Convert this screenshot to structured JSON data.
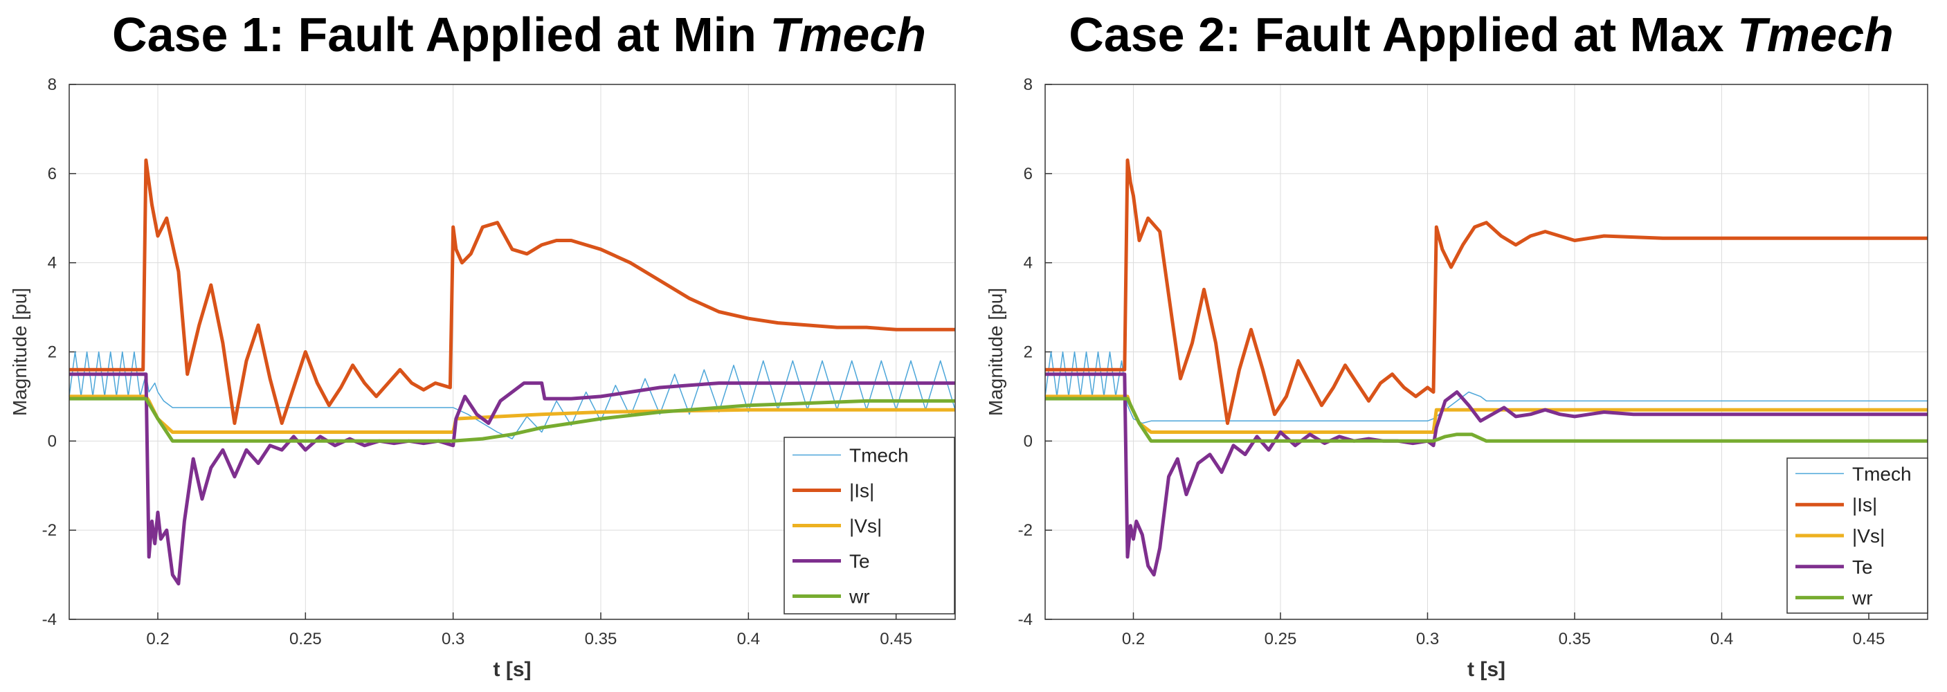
{
  "chart_data": [
    {
      "type": "line",
      "title_main": "Case 1: Fault Applied at Min ",
      "title_em": "Tmech",
      "xlabel": "t [s]",
      "ylabel": "Magnitude [pu]",
      "xlim": [
        0.17,
        0.47
      ],
      "ylim": [
        -4,
        8
      ],
      "xticks": [
        0.2,
        0.25,
        0.3,
        0.35,
        0.4,
        0.45
      ],
      "xticklabels": [
        "0.2",
        "0.25",
        "0.3",
        "0.35",
        "0.4",
        "0.45"
      ],
      "yticks": [
        -4,
        -2,
        0,
        2,
        4,
        6,
        8
      ],
      "yticklabels": [
        "-4",
        "-2",
        "0",
        "2",
        "4",
        "6",
        "8"
      ],
      "grid": true,
      "legend_position": "bottom-right",
      "series": [
        {
          "name": "Tmech",
          "color": "#4DA6D9",
          "width": 1.5,
          "x": [
            0.17,
            0.172,
            0.174,
            0.176,
            0.178,
            0.18,
            0.182,
            0.184,
            0.186,
            0.188,
            0.19,
            0.192,
            0.194,
            0.196,
            0.197,
            0.199,
            0.2,
            0.202,
            0.205,
            0.3,
            0.305,
            0.31,
            0.315,
            0.32,
            0.325,
            0.33,
            0.335,
            0.34,
            0.345,
            0.35,
            0.355,
            0.36,
            0.365,
            0.37,
            0.375,
            0.38,
            0.385,
            0.39,
            0.395,
            0.4,
            0.405,
            0.41,
            0.415,
            0.42,
            0.425,
            0.43,
            0.435,
            0.44,
            0.445,
            0.45,
            0.455,
            0.46,
            0.465,
            0.47
          ],
          "y": [
            1.0,
            2.0,
            1.0,
            2.0,
            1.0,
            2.0,
            1.0,
            2.0,
            1.0,
            2.0,
            1.0,
            2.0,
            1.0,
            1.5,
            1.1,
            1.3,
            1.1,
            0.9,
            0.75,
            0.75,
            0.6,
            0.4,
            0.2,
            0.05,
            0.55,
            0.2,
            0.9,
            0.35,
            1.1,
            0.45,
            1.25,
            0.55,
            1.4,
            0.6,
            1.5,
            0.6,
            1.6,
            0.65,
            1.7,
            0.65,
            1.8,
            0.7,
            1.8,
            0.7,
            1.8,
            0.7,
            1.8,
            0.7,
            1.8,
            0.7,
            1.8,
            0.7,
            1.8,
            0.7
          ]
        },
        {
          "name": "|Is|",
          "color": "#D95319",
          "width": 5,
          "x": [
            0.17,
            0.195,
            0.196,
            0.197,
            0.198,
            0.2,
            0.203,
            0.207,
            0.21,
            0.214,
            0.218,
            0.222,
            0.226,
            0.23,
            0.234,
            0.238,
            0.242,
            0.246,
            0.25,
            0.254,
            0.258,
            0.262,
            0.266,
            0.27,
            0.274,
            0.278,
            0.282,
            0.286,
            0.29,
            0.294,
            0.299,
            0.3,
            0.301,
            0.303,
            0.306,
            0.31,
            0.315,
            0.32,
            0.325,
            0.33,
            0.335,
            0.34,
            0.35,
            0.36,
            0.37,
            0.38,
            0.39,
            0.4,
            0.41,
            0.42,
            0.43,
            0.44,
            0.45,
            0.46,
            0.47
          ],
          "y": [
            1.6,
            1.6,
            6.3,
            5.8,
            5.3,
            4.6,
            5.0,
            3.8,
            1.5,
            2.6,
            3.5,
            2.2,
            0.4,
            1.8,
            2.6,
            1.4,
            0.4,
            1.2,
            2.0,
            1.3,
            0.8,
            1.2,
            1.7,
            1.3,
            1.0,
            1.3,
            1.6,
            1.3,
            1.15,
            1.3,
            1.2,
            4.8,
            4.3,
            4.0,
            4.2,
            4.8,
            4.9,
            4.3,
            4.2,
            4.4,
            4.5,
            4.5,
            4.3,
            4.0,
            3.6,
            3.2,
            2.9,
            2.75,
            2.65,
            2.6,
            2.55,
            2.55,
            2.5,
            2.5,
            2.5
          ]
        },
        {
          "name": "|Vs|",
          "color": "#EDB120",
          "width": 5,
          "x": [
            0.17,
            0.196,
            0.197,
            0.2,
            0.205,
            0.3,
            0.301,
            0.33,
            0.35,
            0.4,
            0.47
          ],
          "y": [
            1.0,
            1.0,
            0.9,
            0.5,
            0.2,
            0.2,
            0.5,
            0.6,
            0.65,
            0.7,
            0.7
          ]
        },
        {
          "name": "Te",
          "color": "#7E2F8E",
          "width": 5,
          "x": [
            0.17,
            0.196,
            0.197,
            0.198,
            0.199,
            0.2,
            0.201,
            0.203,
            0.205,
            0.207,
            0.209,
            0.212,
            0.215,
            0.218,
            0.222,
            0.226,
            0.23,
            0.234,
            0.238,
            0.242,
            0.246,
            0.25,
            0.255,
            0.26,
            0.265,
            0.27,
            0.275,
            0.28,
            0.285,
            0.29,
            0.295,
            0.3,
            0.301,
            0.304,
            0.308,
            0.312,
            0.316,
            0.32,
            0.324,
            0.328,
            0.33,
            0.331,
            0.34,
            0.35,
            0.36,
            0.37,
            0.38,
            0.39,
            0.4,
            0.42,
            0.44,
            0.47
          ],
          "y": [
            1.5,
            1.5,
            -2.6,
            -1.8,
            -2.3,
            -1.6,
            -2.2,
            -2.0,
            -3.0,
            -3.2,
            -1.8,
            -0.4,
            -1.3,
            -0.6,
            -0.2,
            -0.8,
            -0.2,
            -0.5,
            -0.1,
            -0.2,
            0.1,
            -0.2,
            0.1,
            -0.1,
            0.05,
            -0.1,
            0.0,
            -0.05,
            0.0,
            -0.05,
            0.0,
            -0.1,
            0.5,
            1.0,
            0.6,
            0.4,
            0.9,
            1.1,
            1.3,
            1.3,
            1.3,
            0.95,
            0.95,
            1.0,
            1.1,
            1.2,
            1.25,
            1.3,
            1.3,
            1.3,
            1.3,
            1.3
          ]
        },
        {
          "name": "wr",
          "color": "#77AC30",
          "width": 5,
          "x": [
            0.17,
            0.196,
            0.2,
            0.205,
            0.3,
            0.31,
            0.32,
            0.33,
            0.34,
            0.35,
            0.37,
            0.4,
            0.42,
            0.44,
            0.47
          ],
          "y": [
            0.95,
            0.95,
            0.5,
            0.0,
            0.0,
            0.05,
            0.15,
            0.3,
            0.4,
            0.5,
            0.65,
            0.8,
            0.85,
            0.9,
            0.9
          ]
        }
      ],
      "legend": [
        "Tmech",
        "|Is|",
        "|Vs|",
        "Te",
        "wr"
      ]
    },
    {
      "type": "line",
      "title_main": "Case 2: Fault Applied at Max ",
      "title_em": "Tmech",
      "xlabel": "t [s]",
      "ylabel": "Magnitude [pu]",
      "xlim": [
        0.17,
        0.47
      ],
      "ylim": [
        -4,
        8
      ],
      "xticks": [
        0.2,
        0.25,
        0.3,
        0.35,
        0.4,
        0.45
      ],
      "xticklabels": [
        "0.2",
        "0.25",
        "0.3",
        "0.35",
        "0.4",
        "0.45"
      ],
      "yticks": [
        -4,
        -2,
        0,
        2,
        4,
        6,
        8
      ],
      "yticklabels": [
        "-4",
        "-2",
        "0",
        "2",
        "4",
        "6",
        "8"
      ],
      "grid": true,
      "legend_position": "bottom-right",
      "series": [
        {
          "name": "Tmech",
          "color": "#4DA6D9",
          "width": 1.5,
          "x": [
            0.17,
            0.172,
            0.174,
            0.176,
            0.178,
            0.18,
            0.182,
            0.184,
            0.186,
            0.188,
            0.19,
            0.192,
            0.194,
            0.196,
            0.198,
            0.2,
            0.203,
            0.206,
            0.3,
            0.302,
            0.306,
            0.31,
            0.314,
            0.318,
            0.32,
            0.33,
            0.4,
            0.47
          ],
          "y": [
            1.0,
            2.0,
            1.0,
            2.0,
            1.0,
            2.0,
            1.0,
            2.0,
            1.0,
            2.0,
            1.0,
            2.0,
            1.0,
            1.8,
            0.8,
            0.5,
            0.4,
            0.45,
            0.45,
            0.5,
            0.7,
            0.9,
            1.1,
            1.0,
            0.9,
            0.9,
            0.9,
            0.9
          ]
        },
        {
          "name": "|Is|",
          "color": "#D95319",
          "width": 5,
          "x": [
            0.17,
            0.197,
            0.198,
            0.199,
            0.2,
            0.202,
            0.205,
            0.209,
            0.213,
            0.216,
            0.22,
            0.224,
            0.228,
            0.232,
            0.236,
            0.24,
            0.244,
            0.248,
            0.252,
            0.256,
            0.26,
            0.264,
            0.268,
            0.272,
            0.276,
            0.28,
            0.284,
            0.288,
            0.292,
            0.296,
            0.3,
            0.302,
            0.303,
            0.305,
            0.308,
            0.312,
            0.316,
            0.32,
            0.325,
            0.33,
            0.335,
            0.34,
            0.35,
            0.36,
            0.38,
            0.4,
            0.42,
            0.44,
            0.47
          ],
          "y": [
            1.6,
            1.6,
            6.3,
            5.8,
            5.5,
            4.5,
            5.0,
            4.7,
            2.8,
            1.4,
            2.2,
            3.4,
            2.2,
            0.4,
            1.6,
            2.5,
            1.6,
            0.6,
            1.0,
            1.8,
            1.3,
            0.8,
            1.2,
            1.7,
            1.3,
            0.9,
            1.3,
            1.5,
            1.2,
            1.0,
            1.2,
            1.1,
            4.8,
            4.3,
            3.9,
            4.4,
            4.8,
            4.9,
            4.6,
            4.4,
            4.6,
            4.7,
            4.5,
            4.6,
            4.55,
            4.55,
            4.55,
            4.55,
            4.55
          ]
        },
        {
          "name": "|Vs|",
          "color": "#EDB120",
          "width": 5,
          "x": [
            0.17,
            0.198,
            0.199,
            0.202,
            0.206,
            0.302,
            0.303,
            0.47
          ],
          "y": [
            1.0,
            1.0,
            0.8,
            0.4,
            0.2,
            0.2,
            0.7,
            0.7
          ]
        },
        {
          "name": "Te",
          "color": "#7E2F8E",
          "width": 5,
          "x": [
            0.17,
            0.197,
            0.198,
            0.199,
            0.2,
            0.201,
            0.203,
            0.205,
            0.207,
            0.209,
            0.212,
            0.215,
            0.218,
            0.222,
            0.226,
            0.23,
            0.234,
            0.238,
            0.242,
            0.246,
            0.25,
            0.255,
            0.26,
            0.265,
            0.27,
            0.275,
            0.28,
            0.285,
            0.29,
            0.295,
            0.3,
            0.302,
            0.303,
            0.306,
            0.31,
            0.314,
            0.318,
            0.322,
            0.326,
            0.33,
            0.335,
            0.34,
            0.345,
            0.35,
            0.355,
            0.36,
            0.37,
            0.38,
            0.4,
            0.47
          ],
          "y": [
            1.5,
            1.5,
            -2.6,
            -1.9,
            -2.2,
            -1.8,
            -2.1,
            -2.8,
            -3.0,
            -2.4,
            -0.8,
            -0.4,
            -1.2,
            -0.5,
            -0.3,
            -0.7,
            -0.1,
            -0.3,
            0.1,
            -0.2,
            0.2,
            -0.1,
            0.15,
            -0.05,
            0.1,
            0.0,
            0.05,
            0.0,
            0.0,
            -0.05,
            0.0,
            -0.1,
            0.3,
            0.9,
            1.1,
            0.8,
            0.45,
            0.6,
            0.75,
            0.55,
            0.6,
            0.7,
            0.6,
            0.55,
            0.6,
            0.65,
            0.6,
            0.6,
            0.6,
            0.6
          ]
        },
        {
          "name": "wr",
          "color": "#77AC30",
          "width": 5,
          "x": [
            0.17,
            0.198,
            0.202,
            0.206,
            0.302,
            0.306,
            0.31,
            0.315,
            0.32,
            0.33,
            0.47
          ],
          "y": [
            0.95,
            0.95,
            0.4,
            0.0,
            0.0,
            0.1,
            0.15,
            0.15,
            0.0,
            0.0,
            0.0
          ]
        }
      ],
      "legend": [
        "Tmech",
        "|Is|",
        "|Vs|",
        "Te",
        "wr"
      ]
    }
  ]
}
